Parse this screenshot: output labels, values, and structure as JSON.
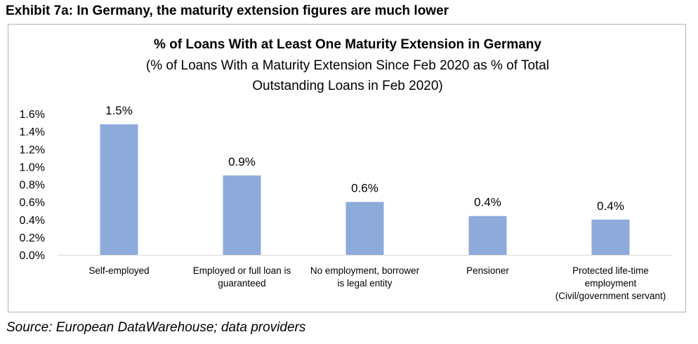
{
  "exhibit_title": "Exhibit 7a: In Germany, the maturity extension figures are much lower",
  "source": "Source: European DataWarehouse; data providers",
  "colors": {
    "bar": "#8eaadb",
    "axis": "#d9d9d9",
    "border": "#b3b3b3"
  },
  "chart_data": {
    "type": "bar",
    "title": "% of Loans With at Least One Maturity Extension in Germany",
    "subtitle_lines": [
      "(% of Loans With a Maturity Extension Since Feb 2020 as % of Total",
      "Outstanding Loans in Feb 2020)"
    ],
    "xlabel": "",
    "ylabel": "",
    "categories": [
      "Self-employed",
      "Employed or full loan is guaranteed",
      "No employment, borrower is legal entity",
      "Pensioner",
      "Protected life-time employment (Civil/government servant)"
    ],
    "category_lines": [
      [
        "Self-employed"
      ],
      [
        "Employed or full loan is",
        "guaranteed"
      ],
      [
        "No employment, borrower",
        "is legal entity"
      ],
      [
        "Pensioner"
      ],
      [
        "Protected life-time",
        "employment",
        "(Civil/government servant)"
      ]
    ],
    "values": [
      1.48,
      0.9,
      0.6,
      0.44,
      0.4
    ],
    "data_labels": [
      "1.5%",
      "0.9%",
      "0.6%",
      "0.4%",
      "0.4%"
    ],
    "ylim": [
      0,
      1.6
    ],
    "yticks": [
      0,
      0.2,
      0.4,
      0.6,
      0.8,
      1.0,
      1.2,
      1.4,
      1.6
    ],
    "ytick_labels": [
      "0.0%",
      "0.2%",
      "0.4%",
      "0.6%",
      "0.8%",
      "1.0%",
      "1.2%",
      "1.4%",
      "1.6%"
    ],
    "grid": false,
    "legend": "none"
  }
}
